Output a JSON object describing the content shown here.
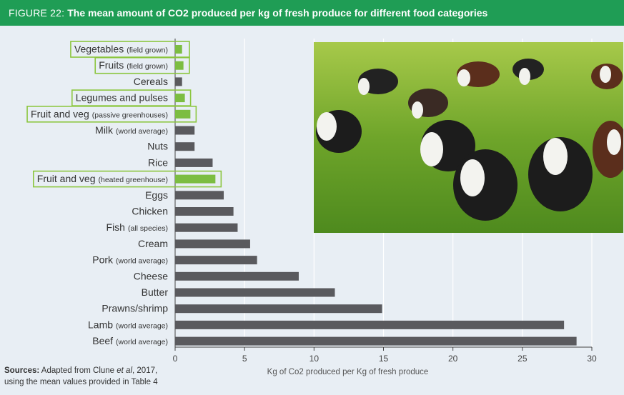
{
  "header": {
    "figure_label": "FIGURE 22:",
    "title": "The mean amount of CO2 produced per kg of fresh produce for different food categories"
  },
  "sources": {
    "label": "Sources:",
    "text_before": " Adapted from Clune ",
    "text_italic": "et al",
    "text_after": ", 2017,",
    "line2": "using the mean values provided in Table 4"
  },
  "colors": {
    "header_bg": "#1f9d55",
    "bar_dark": "#5a5a5e",
    "bar_green": "#7cbd42",
    "highlight_border": "#8cc63f",
    "background": "#e8eef4"
  },
  "chart_data": {
    "type": "bar",
    "orientation": "horizontal",
    "title": "The mean amount of CO2 produced per kg of fresh produce for different food categories",
    "xlabel": "Kg of Co2 produced per Kg of fresh produce",
    "ylabel": "",
    "xlim": [
      0,
      30
    ],
    "xticks": [
      0,
      5,
      10,
      15,
      20,
      25,
      30
    ],
    "grid": true,
    "categories": [
      {
        "main": "Vegetables",
        "sub": "(field grown)",
        "value": 0.5,
        "highlight": true
      },
      {
        "main": "Fruits",
        "sub": "(field grown)",
        "value": 0.6,
        "highlight": true
      },
      {
        "main": "Cereals",
        "sub": "",
        "value": 0.5,
        "highlight": false
      },
      {
        "main": "Legumes and pulses",
        "sub": "",
        "value": 0.7,
        "highlight": true
      },
      {
        "main": "Fruit and veg",
        "sub": "(passive greenhouses)",
        "value": 1.1,
        "highlight": true
      },
      {
        "main": "Milk",
        "sub": "(world average)",
        "value": 1.4,
        "highlight": false
      },
      {
        "main": "Nuts",
        "sub": "",
        "value": 1.4,
        "highlight": false
      },
      {
        "main": "Rice",
        "sub": "",
        "value": 2.7,
        "highlight": false
      },
      {
        "main": "Fruit and veg",
        "sub": "(heated greenhouse)",
        "value": 2.9,
        "highlight": true
      },
      {
        "main": "Eggs",
        "sub": "",
        "value": 3.5,
        "highlight": false
      },
      {
        "main": "Chicken",
        "sub": "",
        "value": 4.2,
        "highlight": false
      },
      {
        "main": "Fish",
        "sub": "(all species)",
        "value": 4.5,
        "highlight": false
      },
      {
        "main": "Cream",
        "sub": "",
        "value": 5.4,
        "highlight": false
      },
      {
        "main": "Pork",
        "sub": "(world average)",
        "value": 5.9,
        "highlight": false
      },
      {
        "main": "Cheese",
        "sub": "",
        "value": 8.9,
        "highlight": false
      },
      {
        "main": "Butter",
        "sub": "",
        "value": 11.5,
        "highlight": false
      },
      {
        "main": "Prawns/shrimp",
        "sub": "",
        "value": 14.9,
        "highlight": false
      },
      {
        "main": "Lamb",
        "sub": "(world average)",
        "value": 28.0,
        "highlight": false
      },
      {
        "main": "Beef",
        "sub": "(world average)",
        "value": 28.9,
        "highlight": false
      }
    ]
  }
}
